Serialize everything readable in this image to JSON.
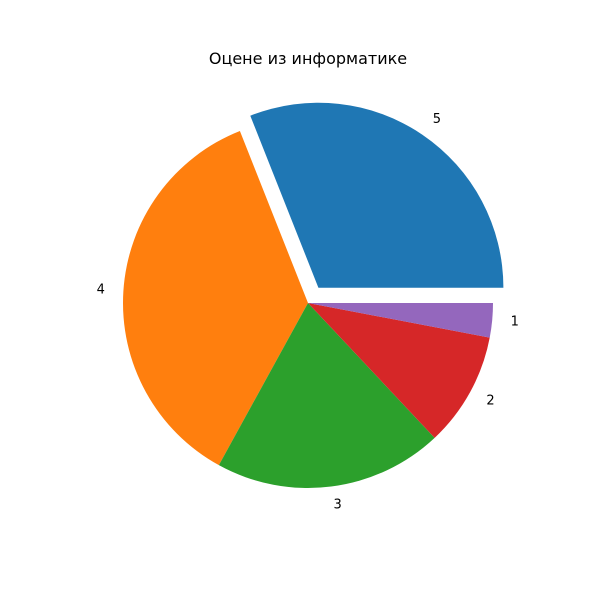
{
  "chart_data": {
    "type": "pie",
    "title": "Оцене из информатике",
    "labels": [
      "5",
      "4",
      "3",
      "2",
      "1"
    ],
    "values": [
      31,
      36,
      20,
      10,
      3
    ],
    "colors": [
      "#1f77b4",
      "#ff7f0e",
      "#2ca02c",
      "#d62728",
      "#9467bd"
    ],
    "explode": [
      0.1,
      0,
      0,
      0,
      0
    ],
    "start_angle": 0,
    "counterclock": true,
    "legend": false
  }
}
